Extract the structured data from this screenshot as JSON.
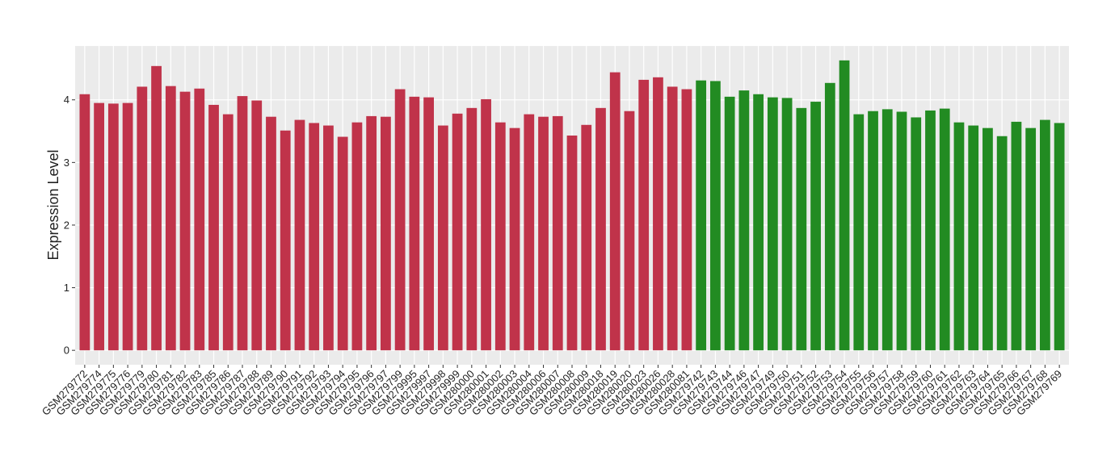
{
  "chart_data": {
    "type": "bar",
    "y_label": "Expression Level",
    "categories": [
      "GSM279772",
      "GSM279774",
      "GSM279775",
      "GSM279776",
      "GSM279779",
      "GSM279780",
      "GSM279781",
      "GSM279782",
      "GSM279783",
      "GSM279785",
      "GSM279786",
      "GSM279787",
      "GSM279788",
      "GSM279789",
      "GSM279790",
      "GSM279791",
      "GSM279792",
      "GSM279793",
      "GSM279794",
      "GSM279795",
      "GSM279796",
      "GSM279797",
      "GSM279799",
      "GSM279995",
      "GSM279997",
      "GSM279998",
      "GSM279999",
      "GSM280000",
      "GSM280001",
      "GSM280002",
      "GSM280003",
      "GSM280004",
      "GSM280006",
      "GSM280007",
      "GSM280008",
      "GSM280009",
      "GSM280018",
      "GSM280019",
      "GSM280020",
      "GSM280023",
      "GSM280026",
      "GSM280028",
      "GSM280081",
      "GSM279742",
      "GSM279743",
      "GSM279744",
      "GSM279746",
      "GSM279747",
      "GSM279749",
      "GSM279750",
      "GSM279751",
      "GSM279752",
      "GSM279753",
      "GSM279754",
      "GSM279755",
      "GSM279756",
      "GSM279757",
      "GSM279758",
      "GSM279759",
      "GSM279760",
      "GSM279761",
      "GSM279762",
      "GSM279763",
      "GSM279764",
      "GSM279765",
      "GSM279766",
      "GSM279767",
      "GSM279768",
      "GSM279769"
    ],
    "values": [
      4.09,
      3.95,
      3.94,
      3.95,
      4.21,
      4.54,
      4.22,
      4.13,
      4.18,
      3.92,
      3.77,
      4.06,
      3.99,
      3.73,
      3.51,
      3.68,
      3.63,
      3.59,
      3.41,
      3.64,
      3.74,
      3.73,
      4.17,
      4.05,
      4.04,
      3.59,
      3.78,
      3.87,
      4.01,
      3.64,
      3.55,
      3.77,
      3.73,
      3.74,
      3.43,
      3.6,
      3.87,
      4.44,
      3.82,
      4.32,
      4.36,
      4.21,
      4.17,
      4.31,
      4.3,
      4.05,
      4.15,
      4.09,
      4.04,
      4.03,
      3.87,
      3.97,
      4.27,
      4.63,
      3.77,
      3.82,
      3.85,
      3.81,
      3.72,
      3.83,
      3.86,
      3.64,
      3.59,
      3.55,
      3.42,
      3.65,
      3.55,
      3.68,
      3.63
    ],
    "colors": [
      "#c0334a",
      "#c0334a",
      "#c0334a",
      "#c0334a",
      "#c0334a",
      "#c0334a",
      "#c0334a",
      "#c0334a",
      "#c0334a",
      "#c0334a",
      "#c0334a",
      "#c0334a",
      "#c0334a",
      "#c0334a",
      "#c0334a",
      "#c0334a",
      "#c0334a",
      "#c0334a",
      "#c0334a",
      "#c0334a",
      "#c0334a",
      "#c0334a",
      "#c0334a",
      "#c0334a",
      "#c0334a",
      "#c0334a",
      "#c0334a",
      "#c0334a",
      "#c0334a",
      "#c0334a",
      "#c0334a",
      "#c0334a",
      "#c0334a",
      "#c0334a",
      "#c0334a",
      "#c0334a",
      "#c0334a",
      "#c0334a",
      "#c0334a",
      "#c0334a",
      "#c0334a",
      "#c0334a",
      "#c0334a",
      "#228b22",
      "#228b22",
      "#228b22",
      "#228b22",
      "#228b22",
      "#228b22",
      "#228b22",
      "#228b22",
      "#228b22",
      "#228b22",
      "#228b22",
      "#228b22",
      "#228b22",
      "#228b22",
      "#228b22",
      "#228b22",
      "#228b22",
      "#228b22",
      "#228b22",
      "#228b22",
      "#228b22",
      "#228b22",
      "#228b22",
      "#228b22",
      "#228b22",
      "#228b22"
    ],
    "ylim": [
      -0.23,
      4.86
    ],
    "yticks": [
      0,
      1,
      2,
      3,
      4
    ],
    "grid": true
  }
}
